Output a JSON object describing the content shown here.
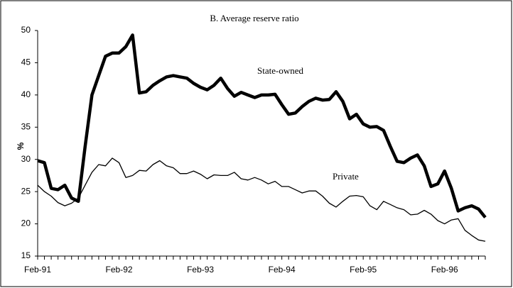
{
  "chart_data": {
    "type": "line",
    "title": "B. Average reserve ratio",
    "y_label": "%",
    "categories": [
      "Feb-91",
      null,
      null,
      null,
      null,
      null,
      null,
      null,
      null,
      null,
      null,
      null,
      "Feb-92",
      null,
      null,
      null,
      null,
      null,
      null,
      null,
      null,
      null,
      null,
      null,
      "Feb-93",
      null,
      null,
      null,
      null,
      null,
      null,
      null,
      null,
      null,
      null,
      null,
      "Feb-94",
      null,
      null,
      null,
      null,
      null,
      null,
      null,
      null,
      null,
      null,
      null,
      "Feb-95",
      null,
      null,
      null,
      null,
      null,
      null,
      null,
      null,
      null,
      null,
      null,
      "Feb-96",
      null,
      null,
      null,
      null,
      null,
      null
    ],
    "series": [
      {
        "name": "State-owned",
        "color": "#000000",
        "width": 4.5,
        "values": [
          29.8,
          29.5,
          25.5,
          25.3,
          26,
          24,
          23.5,
          32,
          40,
          43,
          46,
          46.5,
          46.5,
          47.5,
          49.3,
          40.3,
          40.5,
          41.5,
          42.2,
          42.8,
          43,
          42.8,
          42.6,
          41.8,
          41.2,
          40.8,
          41.5,
          42.6,
          41,
          39.8,
          40.4,
          40,
          39.6,
          40,
          40,
          40.1,
          38.5,
          37,
          37.2,
          38.2,
          39,
          39.5,
          39.2,
          39.3,
          40.5,
          39,
          36.3,
          37,
          35.5,
          35,
          35.1,
          34.5,
          32,
          29.7,
          29.5,
          30.2,
          30.7,
          29,
          25.8,
          26.2,
          28.2,
          25.5,
          22,
          22.5,
          22.8,
          22.3,
          21
        ]
      },
      {
        "name": "Private",
        "color": "#000000",
        "width": 1.3,
        "values": [
          26,
          25,
          24.3,
          23.3,
          22.8,
          23.2,
          24,
          26,
          28,
          29.2,
          29,
          30.2,
          29.5,
          27.2,
          27.5,
          28.3,
          28.2,
          29.2,
          29.8,
          29,
          28.7,
          27.8,
          27.8,
          28.2,
          27.7,
          27,
          27.6,
          27.5,
          27.5,
          28,
          27,
          26.8,
          27.2,
          26.8,
          26.2,
          26.6,
          25.8,
          25.8,
          25.3,
          24.8,
          25.1,
          25.1,
          24.3,
          23.2,
          22.6,
          23.5,
          24.3,
          24.4,
          24.2,
          22.8,
          22.2,
          23.5,
          23,
          22.5,
          22.2,
          21.4,
          21.5,
          22.1,
          21.5,
          20.5,
          20,
          20.6,
          20.8,
          19,
          18.2,
          17.5,
          17.3
        ]
      }
    ],
    "ylim": [
      15,
      50
    ],
    "yticks": [
      15,
      20,
      25,
      30,
      35,
      40,
      45,
      50
    ],
    "grid": false
  }
}
